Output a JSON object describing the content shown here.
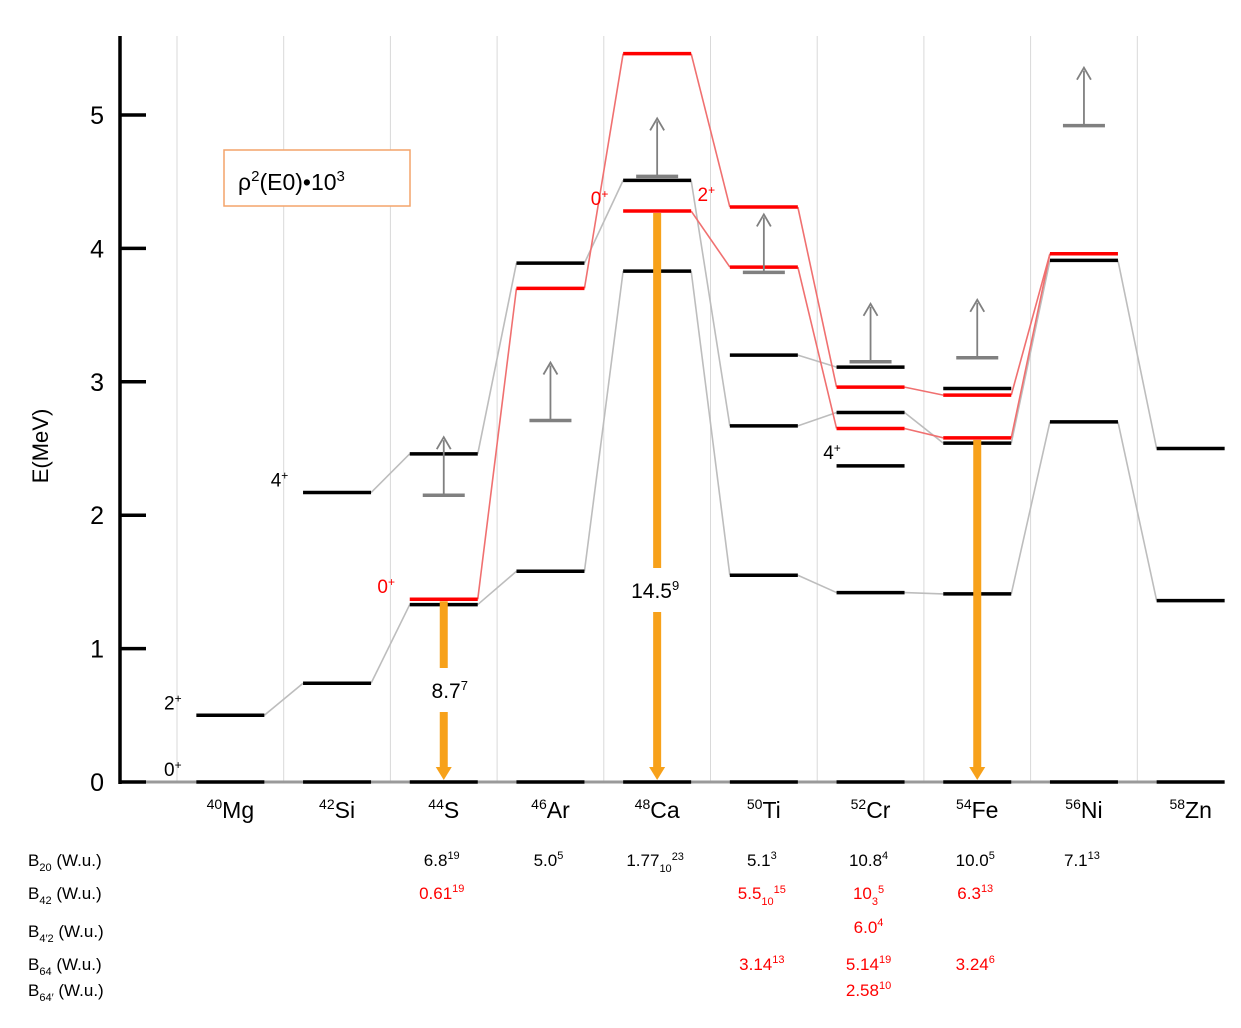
{
  "y_axis": {
    "label": "E(MeV)",
    "ticks": [
      "0",
      "1",
      "2",
      "3",
      "4",
      "5"
    ]
  },
  "legend": {
    "rho": "ρ",
    "exp2": "2",
    "rest": "(E0)•10",
    "exp3": "3"
  },
  "nuclei": [
    {
      "mass": "40",
      "sym": "Mg"
    },
    {
      "mass": "42",
      "sym": "Si"
    },
    {
      "mass": "44",
      "sym": "S"
    },
    {
      "mass": "46",
      "sym": "Ar"
    },
    {
      "mass": "48",
      "sym": "Ca"
    },
    {
      "mass": "50",
      "sym": "Ti"
    },
    {
      "mass": "52",
      "sym": "Cr"
    },
    {
      "mass": "54",
      "sym": "Fe"
    },
    {
      "mass": "56",
      "sym": "Ni"
    },
    {
      "mass": "58",
      "sym": "Zn"
    }
  ],
  "levels": [
    {
      "col": 0,
      "e": 0.5,
      "color": "black"
    },
    {
      "col": 1,
      "e": 0.74,
      "color": "black"
    },
    {
      "col": 1,
      "e": 2.17,
      "color": "black"
    },
    {
      "col": 2,
      "e": 1.33,
      "color": "black"
    },
    {
      "col": 2,
      "e": 1.37,
      "color": "red"
    },
    {
      "col": 2,
      "e": 2.46,
      "color": "black"
    },
    {
      "col": 3,
      "e": 1.58,
      "color": "black"
    },
    {
      "col": 3,
      "e": 3.7,
      "color": "red"
    },
    {
      "col": 3,
      "e": 3.89,
      "color": "black"
    },
    {
      "col": 4,
      "e": 3.83,
      "color": "black"
    },
    {
      "col": 4,
      "e": 4.28,
      "color": "red"
    },
    {
      "col": 4,
      "e": 4.51,
      "color": "black"
    },
    {
      "col": 4,
      "e": 5.46,
      "color": "red"
    },
    {
      "col": 5,
      "e": 1.55,
      "color": "black"
    },
    {
      "col": 5,
      "e": 2.67,
      "color": "black"
    },
    {
      "col": 5,
      "e": 3.2,
      "color": "black"
    },
    {
      "col": 5,
      "e": 3.86,
      "color": "red"
    },
    {
      "col": 5,
      "e": 4.31,
      "color": "red"
    },
    {
      "col": 6,
      "e": 1.42,
      "color": "black"
    },
    {
      "col": 6,
      "e": 2.37,
      "color": "black"
    },
    {
      "col": 6,
      "e": 2.65,
      "color": "red"
    },
    {
      "col": 6,
      "e": 2.77,
      "color": "black"
    },
    {
      "col": 6,
      "e": 2.96,
      "color": "red"
    },
    {
      "col": 6,
      "e": 3.11,
      "color": "black"
    },
    {
      "col": 7,
      "e": 1.41,
      "color": "black"
    },
    {
      "col": 7,
      "e": 2.54,
      "color": "black"
    },
    {
      "col": 7,
      "e": 2.58,
      "color": "red"
    },
    {
      "col": 7,
      "e": 2.9,
      "color": "red"
    },
    {
      "col": 7,
      "e": 2.95,
      "color": "black"
    },
    {
      "col": 8,
      "e": 2.7,
      "color": "black"
    },
    {
      "col": 8,
      "e": 3.91,
      "color": "black"
    },
    {
      "col": 8,
      "e": 3.96,
      "color": "red"
    },
    {
      "col": 9,
      "e": 1.36,
      "color": "black"
    },
    {
      "col": 9,
      "e": 2.5,
      "color": "black"
    }
  ],
  "connectors_gray": [
    [
      0,
      0.5,
      1,
      0.74
    ],
    [
      1,
      0.74,
      2,
      1.33
    ],
    [
      1,
      2.17,
      2,
      2.46
    ],
    [
      2,
      1.33,
      3,
      1.58
    ],
    [
      2,
      2.46,
      3,
      3.89
    ],
    [
      3,
      1.58,
      4,
      3.83
    ],
    [
      3,
      3.89,
      4,
      4.51
    ],
    [
      4,
      3.83,
      5,
      1.55
    ],
    [
      4,
      4.51,
      5,
      2.67
    ],
    [
      5,
      1.55,
      6,
      1.42
    ],
    [
      5,
      2.67,
      6,
      2.77
    ],
    [
      5,
      3.2,
      6,
      3.11
    ],
    [
      6,
      1.42,
      7,
      1.41
    ],
    [
      6,
      2.77,
      7,
      2.54
    ],
    [
      7,
      1.41,
      8,
      2.7
    ],
    [
      7,
      2.54,
      8,
      3.91
    ],
    [
      8,
      2.7,
      9,
      1.36
    ],
    [
      8,
      3.91,
      9,
      2.5
    ]
  ],
  "connectors_red": [
    [
      2,
      1.37,
      3,
      3.7
    ],
    [
      3,
      3.7,
      4,
      5.46
    ],
    [
      4,
      5.46,
      5,
      4.31
    ],
    [
      4,
      4.28,
      5,
      3.86
    ],
    [
      5,
      4.31,
      6,
      2.96
    ],
    [
      5,
      3.86,
      6,
      2.65
    ],
    [
      6,
      2.96,
      7,
      2.9
    ],
    [
      6,
      2.65,
      7,
      2.58
    ],
    [
      7,
      2.9,
      8,
      3.96
    ],
    [
      7,
      2.58,
      8,
      3.96
    ]
  ],
  "limits": [
    {
      "col": 2,
      "e": 2.15
    },
    {
      "col": 3,
      "e": 2.71
    },
    {
      "col": 4,
      "e": 4.54
    },
    {
      "col": 5,
      "e": 3.82
    },
    {
      "col": 6,
      "e": 3.15
    },
    {
      "col": 7,
      "e": 3.18
    },
    {
      "col": 8,
      "e": 4.92
    }
  ],
  "transitions": [
    {
      "col": 2,
      "e_top": 1.37,
      "value": "8.7",
      "err": "7"
    },
    {
      "col": 4,
      "e_top": 4.28,
      "value": "14.5",
      "err": "9"
    },
    {
      "col": 7,
      "e_top": 2.58,
      "value": "",
      "err": ""
    }
  ],
  "spin_labels": [
    {
      "text": "0",
      "sup": "+",
      "color": "black",
      "col": 0,
      "e": 0.0
    },
    {
      "text": "2",
      "sup": "+",
      "color": "black",
      "col": 0,
      "e": 0.5
    },
    {
      "text": "4",
      "sup": "+",
      "color": "black",
      "col": 1,
      "e": 2.17
    },
    {
      "text": "0",
      "sup": "+",
      "color": "red",
      "col": 2,
      "e": 1.37
    },
    {
      "text": "0",
      "sup": "+",
      "color": "red",
      "col": 4,
      "e": 4.28
    },
    {
      "text": "2",
      "sup": "+",
      "color": "red",
      "col": 5,
      "e": 4.31
    },
    {
      "text": "4",
      "sup": "+",
      "color": "black",
      "col": 6,
      "e": 2.37
    }
  ],
  "table_rows": [
    {
      "label": "B",
      "sub": "20",
      "prime": "",
      "unit": " (W.u.)"
    },
    {
      "label": "B",
      "sub": "42",
      "prime": "",
      "unit": " (W.u.)"
    },
    {
      "label": "B",
      "sub": "4′2",
      "prime": "",
      "unit": " (W.u.)"
    },
    {
      "label": "B",
      "sub": "64",
      "prime": "",
      "unit": " (W.u.)"
    },
    {
      "label": "B",
      "sub": "64′",
      "prime": "",
      "unit": " (W.u.)"
    }
  ],
  "table_cells": [
    {
      "row": 0,
      "col": 2,
      "main": "6.8",
      "sub": "",
      "sup": "19",
      "color": "black"
    },
    {
      "row": 0,
      "col": 3,
      "main": "5.0",
      "sub": "",
      "sup": "5",
      "color": "black"
    },
    {
      "row": 0,
      "col": 4,
      "main": "1.77",
      "sub": "10",
      "sup": "23",
      "color": "black"
    },
    {
      "row": 0,
      "col": 5,
      "main": "5.1",
      "sub": "",
      "sup": "3",
      "color": "black"
    },
    {
      "row": 0,
      "col": 6,
      "main": "10.8",
      "sub": "",
      "sup": "4",
      "color": "black"
    },
    {
      "row": 0,
      "col": 7,
      "main": "10.0",
      "sub": "",
      "sup": "5",
      "color": "black"
    },
    {
      "row": 0,
      "col": 8,
      "main": "7.1",
      "sub": "",
      "sup": "13",
      "color": "black"
    },
    {
      "row": 1,
      "col": 2,
      "main": "0.61",
      "sub": "",
      "sup": "19",
      "color": "red"
    },
    {
      "row": 1,
      "col": 5,
      "main": "5.5",
      "sub": "10",
      "sup": "15",
      "color": "red"
    },
    {
      "row": 1,
      "col": 6,
      "main": "10",
      "sub": "3",
      "sup": "5",
      "color": "red"
    },
    {
      "row": 1,
      "col": 7,
      "main": "6.3",
      "sub": "",
      "sup": "13",
      "color": "red"
    },
    {
      "row": 2,
      "col": 6,
      "main": "6.0",
      "sub": "",
      "sup": "4",
      "color": "red"
    },
    {
      "row": 3,
      "col": 5,
      "main": "3.14",
      "sub": "",
      "sup": "13",
      "color": "red"
    },
    {
      "row": 3,
      "col": 6,
      "main": "5.14",
      "sub": "",
      "sup": "19",
      "color": "red"
    },
    {
      "row": 3,
      "col": 7,
      "main": "3.24",
      "sub": "",
      "sup": "6",
      "color": "red"
    },
    {
      "row": 4,
      "col": 6,
      "main": "2.58",
      "sub": "",
      "sup": "10",
      "color": "red"
    }
  ],
  "colors": {
    "level_black": "#000000",
    "level_red": "#ff0000",
    "connector_gray": "#bdbdbd",
    "connector_red": "#f07070",
    "limit_gray": "#808080",
    "arrow_orange": "#f7a11a",
    "grid": "#d9d9d9",
    "legend_border": "#f4a46a"
  }
}
